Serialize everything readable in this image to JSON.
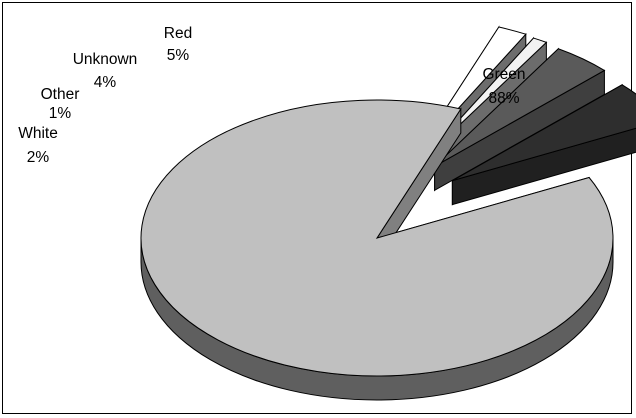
{
  "chart_data": {
    "type": "pie",
    "style": "3d-exploded",
    "title": "",
    "slices": [
      {
        "label": "Green",
        "value": 88,
        "display": "88%",
        "color": "#C0C0C0"
      },
      {
        "label": "White",
        "value": 2,
        "display": "2%",
        "color": "#FFFFFF"
      },
      {
        "label": "Other",
        "value": 1,
        "display": "1%",
        "color": "#F2F2F2"
      },
      {
        "label": "Unknown",
        "value": 4,
        "display": "4%",
        "color": "#5A5A5A"
      },
      {
        "label": "Red",
        "value": 5,
        "display": "5%",
        "color": "#2E2E2E"
      }
    ]
  }
}
